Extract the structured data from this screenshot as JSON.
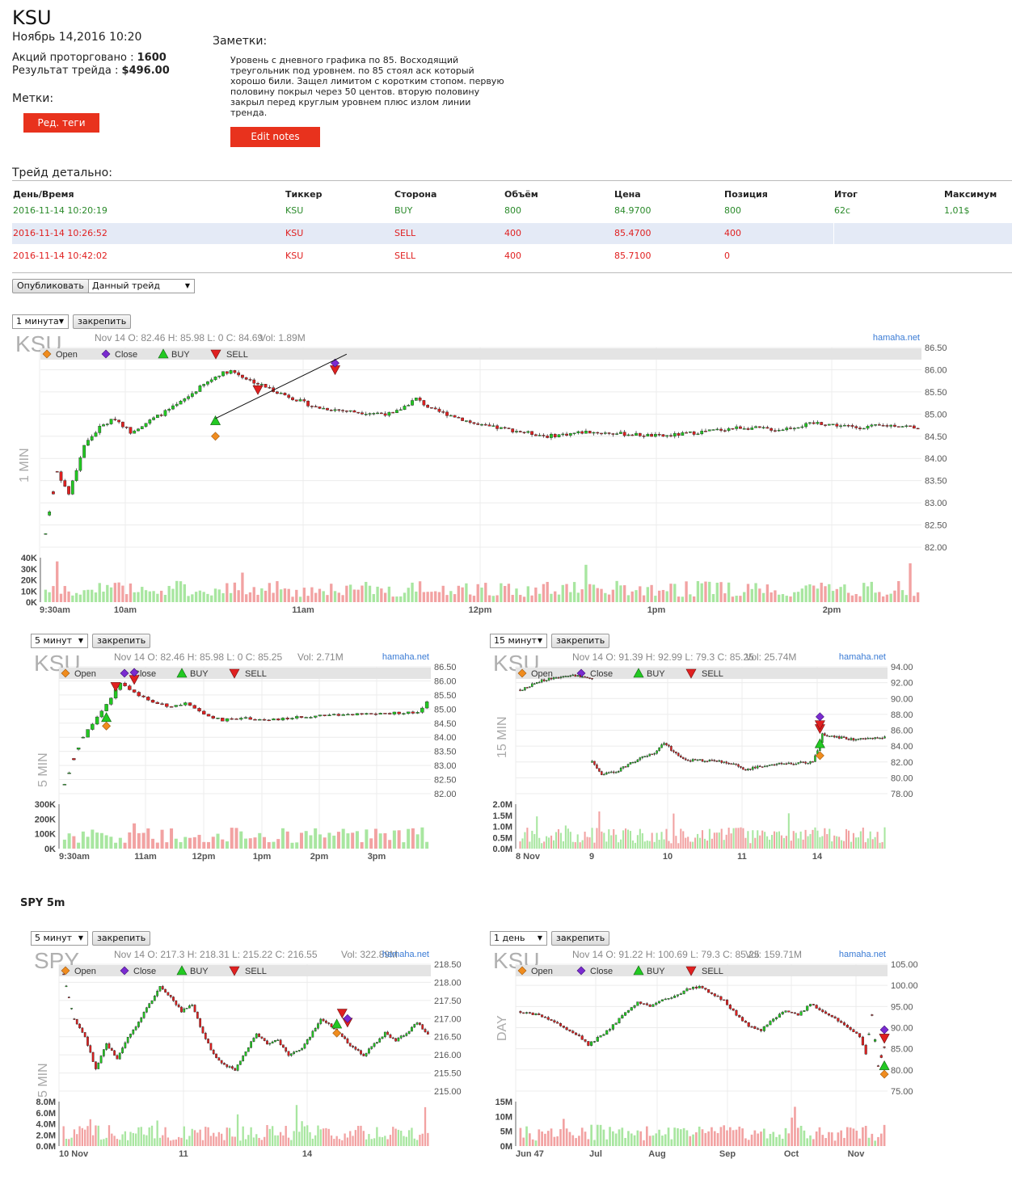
{
  "header": {
    "ticker": "KSU",
    "date": "Ноябрь 14,2016 10:20",
    "shares_label": "Акций проторговано :",
    "shares_value": "1600",
    "result_label": "Результат трейда :",
    "result_value": "$496.00",
    "tags_label": "Метки:",
    "edit_tags_button": "Ред. теги",
    "notes_label": "Заметки:",
    "notes_text": "Уровень с дневного графика по 85. Восходящий треугольник под уровнем. по 85 стоял аск который хорошо били. Защел лимитом с коротким стопом. первую половину покрыл через 50 центов. вторую половину закрыл перед круглым уровнем плюс излом линии тренда.",
    "edit_notes_button": "Edit notes"
  },
  "trade_detail": {
    "title": "Трейд детально:",
    "columns": [
      "День/Время",
      "Тиккер",
      "Сторона",
      "Объём",
      "Цена",
      "Позиция",
      "Итог",
      "Максимум"
    ],
    "rows": [
      {
        "datetime": "2016-11-14 10:20:19",
        "ticker": "KSU",
        "side": "BUY",
        "volume": "800",
        "price": "84.9700",
        "position": "800",
        "total": "62c",
        "max": "1,01$"
      },
      {
        "datetime": "2016-11-14 10:26:52",
        "ticker": "KSU",
        "side": "SELL",
        "volume": "400",
        "price": "85.4700",
        "position": "400",
        "total": "",
        "max": ""
      },
      {
        "datetime": "2016-11-14 10:42:02",
        "ticker": "KSU",
        "side": "SELL",
        "volume": "400",
        "price": "85.7100",
        "position": "0",
        "total": "",
        "max": ""
      }
    ],
    "publish_button": "Опубликовать",
    "publish_select": "Данный трейд"
  },
  "controls": {
    "pin_button": "закрепить",
    "tf_1min": "1 минута",
    "tf_5min": "5 минут",
    "tf_15min": "15 минут",
    "tf_1day": "1 день"
  },
  "legend": {
    "open": "Open",
    "close": "Close",
    "buy": "BUY",
    "sell": "SELL"
  },
  "colors": {
    "up": "#22c922",
    "down": "#e02020",
    "open_marker": "#f08c1e",
    "close_marker": "#7a2bd0",
    "brand_button": "#e8321d",
    "vol_up": "#a8e6a0",
    "vol_down": "#f2a2a2"
  },
  "spy_section_title": "SPY 5m",
  "chart_data": [
    {
      "type": "candlestick",
      "symbol": "KSU",
      "watermark": "KSU",
      "side_label": "1 MIN",
      "info_line": "Nov 14 O: 82.46 H: 85.98 L: 0 C: 84.69",
      "vol_line": "Vol: 1.89M",
      "source": "hamaha.net",
      "y_ticks": [
        "86.50",
        "86.00",
        "85.50",
        "85.00",
        "84.50",
        "84.00",
        "83.50",
        "83.00",
        "82.50",
        "82.00"
      ],
      "ylim": [
        82.0,
        86.5
      ],
      "vol_ticks": [
        "40K",
        "30K",
        "20K",
        "10K",
        "0K"
      ],
      "x_ticks": [
        "9:30am",
        "10am",
        "11am",
        "12pm",
        "1pm",
        "2pm"
      ],
      "keypoints": [
        [
          0,
          82.3
        ],
        [
          3,
          83.7
        ],
        [
          6,
          83.2
        ],
        [
          10,
          84.3
        ],
        [
          14,
          84.7
        ],
        [
          18,
          84.9
        ],
        [
          22,
          84.6
        ],
        [
          28,
          84.9
        ],
        [
          34,
          85.2
        ],
        [
          40,
          85.6
        ],
        [
          45,
          85.9
        ],
        [
          48,
          85.98
        ],
        [
          52,
          85.8
        ],
        [
          60,
          85.5
        ],
        [
          70,
          85.15
        ],
        [
          80,
          85.05
        ],
        [
          90,
          85.0
        ],
        [
          96,
          85.35
        ],
        [
          100,
          85.1
        ],
        [
          106,
          84.95
        ],
        [
          112,
          84.75
        ],
        [
          120,
          84.65
        ],
        [
          130,
          84.5
        ],
        [
          140,
          84.6
        ],
        [
          150,
          84.55
        ],
        [
          160,
          84.5
        ],
        [
          170,
          84.6
        ],
        [
          180,
          84.7
        ],
        [
          190,
          84.65
        ],
        [
          200,
          84.8
        ],
        [
          210,
          84.7
        ],
        [
          220,
          84.75
        ],
        [
          226,
          84.7
        ]
      ],
      "bars": 227,
      "markers": {
        "open": [
          44,
          84.5
        ],
        "buy": [
          44,
          84.85
        ],
        "sell1": [
          55,
          85.55
        ],
        "sell2": [
          75,
          86.0
        ],
        "close": [
          75,
          86.15
        ]
      }
    },
    {
      "type": "candlestick",
      "symbol": "KSU",
      "watermark": "KSU",
      "side_label": "5 MIN",
      "info_line": "Nov 14 O: 82.46 H: 85.98 L: 0 C: 85.25",
      "vol_line": "Vol: 2.71M",
      "source": "hamaha.net",
      "y_ticks": [
        "86.50",
        "86.00",
        "85.50",
        "85.00",
        "84.50",
        "84.00",
        "83.50",
        "83.00",
        "82.50",
        "82.00"
      ],
      "ylim": [
        82.0,
        86.5
      ],
      "vol_ticks": [
        "300K",
        "200K",
        "100K",
        "0K"
      ],
      "x_ticks": [
        "9:30am",
        "11am",
        "12pm",
        "1pm",
        "2pm",
        "3pm"
      ],
      "keypoints": [
        [
          0,
          82.3
        ],
        [
          2,
          83.2
        ],
        [
          4,
          84.0
        ],
        [
          6,
          84.5
        ],
        [
          8,
          84.9
        ],
        [
          10,
          85.4
        ],
        [
          12,
          85.95
        ],
        [
          14,
          85.7
        ],
        [
          18,
          85.3
        ],
        [
          22,
          85.1
        ],
        [
          26,
          85.2
        ],
        [
          30,
          84.8
        ],
        [
          34,
          84.6
        ],
        [
          38,
          84.7
        ],
        [
          44,
          84.6
        ],
        [
          50,
          84.7
        ],
        [
          56,
          84.8
        ],
        [
          62,
          84.8
        ],
        [
          70,
          84.85
        ],
        [
          76,
          84.9
        ],
        [
          78,
          85.25
        ]
      ],
      "bars": 79,
      "markers": {
        "open": [
          9,
          84.4
        ],
        "buy": [
          9,
          84.7
        ],
        "sell1": [
          11,
          85.8
        ],
        "sell2": [
          15,
          86.05
        ],
        "close": [
          15,
          86.3
        ]
      }
    },
    {
      "type": "candlestick",
      "symbol": "KSU",
      "watermark": "KSU",
      "side_label": "15 MIN",
      "info_line": "Nov 14 O: 91.39 H: 92.99 L: 79.3 C: 85.25",
      "vol_line": "Vol: 25.74M",
      "source": "hamaha.net",
      "y_ticks": [
        "94.00",
        "92.00",
        "90.00",
        "88.00",
        "86.00",
        "84.00",
        "82.00",
        "80.00",
        "78.00"
      ],
      "ylim": [
        78.0,
        94.0
      ],
      "vol_ticks": [
        "2.0M",
        "1.5M",
        "1.0M",
        "0.5M",
        "0.0M"
      ],
      "x_ticks": [
        "8 Nov",
        "9",
        "10",
        "11",
        "14"
      ],
      "segments": [
        {
          "start": 0,
          "points": [
            [
              0,
              91.0
            ],
            [
              8,
              92.2
            ],
            [
              16,
              92.7
            ],
            [
              24,
              92.9
            ],
            [
              30,
              92.6
            ]
          ]
        },
        {
          "start": 30,
          "points": [
            [
              30,
              82.0
            ],
            [
              34,
              80.5
            ],
            [
              40,
              80.8
            ],
            [
              46,
              81.8
            ],
            [
              52,
              82.8
            ],
            [
              56,
              83.0
            ],
            [
              60,
              84.5
            ],
            [
              64,
              83.2
            ],
            [
              70,
              82.2
            ],
            [
              80,
              82.2
            ],
            [
              88,
              81.8
            ],
            [
              94,
              81.0
            ],
            [
              100,
              81.5
            ],
            [
              110,
              81.8
            ],
            [
              122,
              82.0
            ],
            [
              124,
              83.5
            ],
            [
              126,
              85.5
            ],
            [
              130,
              85.2
            ],
            [
              140,
              84.8
            ],
            [
              150,
              85.0
            ],
            [
              152,
              85.25
            ]
          ]
        }
      ],
      "bars": 153,
      "markers": {
        "open": [
          125,
          82.8
        ],
        "buy": [
          125,
          84.3
        ],
        "sell1": [
          125,
          86.2
        ],
        "sell2": [
          125,
          86.7
        ],
        "close": [
          125,
          87.7
        ]
      }
    },
    {
      "type": "candlestick",
      "symbol": "SPY",
      "watermark": "SPY",
      "side_label": "5 MIN",
      "info_line": "Nov 14 O: 217.3 H: 218.31 L: 215.22 C: 216.55",
      "vol_line": "Vol: 322.89M",
      "source": "hamaha.net",
      "y_ticks": [
        "218.50",
        "218.00",
        "217.50",
        "217.00",
        "216.50",
        "216.00",
        "215.50",
        "215.00"
      ],
      "ylim": [
        215.0,
        218.5
      ],
      "vol_ticks": [
        "8.0M",
        "6.0M",
        "4.0M",
        "2.0M",
        "0.0M"
      ],
      "x_ticks": [
        "10 Nov",
        "11",
        "14"
      ],
      "keypoints": [
        [
          0,
          218.2
        ],
        [
          4,
          217.0
        ],
        [
          8,
          216.5
        ],
        [
          12,
          215.6
        ],
        [
          16,
          216.3
        ],
        [
          20,
          215.9
        ],
        [
          24,
          216.5
        ],
        [
          28,
          216.9
        ],
        [
          32,
          217.4
        ],
        [
          36,
          217.9
        ],
        [
          40,
          217.6
        ],
        [
          44,
          217.2
        ],
        [
          48,
          217.4
        ],
        [
          52,
          216.6
        ],
        [
          56,
          216.0
        ],
        [
          60,
          215.7
        ],
        [
          64,
          215.6
        ],
        [
          68,
          216.1
        ],
        [
          72,
          216.6
        ],
        [
          76,
          216.3
        ],
        [
          80,
          216.4
        ],
        [
          84,
          216.0
        ],
        [
          88,
          216.1
        ],
        [
          92,
          216.5
        ],
        [
          96,
          217.0
        ],
        [
          100,
          216.8
        ],
        [
          104,
          216.5
        ],
        [
          108,
          216.2
        ],
        [
          112,
          216.0
        ],
        [
          116,
          216.3
        ],
        [
          120,
          216.6
        ],
        [
          124,
          216.4
        ],
        [
          128,
          216.6
        ],
        [
          132,
          216.9
        ],
        [
          136,
          216.55
        ]
      ],
      "bars": 137,
      "markers": {
        "open": [
          102,
          216.6
        ],
        "buy": [
          102,
          216.85
        ],
        "sell1": [
          106,
          216.9
        ],
        "sell2": [
          104,
          217.15
        ],
        "close": [
          106,
          217.0
        ]
      }
    },
    {
      "type": "candlestick",
      "symbol": "KSU",
      "watermark": "KSU",
      "side_label": "DAY",
      "info_line": "Nov 14 O: 91.22 H: 100.69 L: 79.3 C: 85.25",
      "vol_line": "Vol: 159.71M",
      "source": "hamaha.net",
      "y_ticks": [
        "105.00",
        "100.00",
        "95.00",
        "90.00",
        "85.00",
        "80.00",
        "75.00"
      ],
      "ylim": [
        75.0,
        105.0
      ],
      "vol_ticks": [
        "15M",
        "10M",
        "5M",
        "0M"
      ],
      "x_ticks": [
        "Jun 47",
        "Jul",
        "Aug",
        "Sep",
        "Oct",
        "Nov"
      ],
      "keypoints": [
        [
          0,
          93.5
        ],
        [
          6,
          93.0
        ],
        [
          12,
          91.0
        ],
        [
          18,
          88.5
        ],
        [
          22,
          86.0
        ],
        [
          26,
          88.0
        ],
        [
          30,
          90.5
        ],
        [
          34,
          93.5
        ],
        [
          38,
          96.0
        ],
        [
          42,
          95.0
        ],
        [
          46,
          96.5
        ],
        [
          50,
          97.5
        ],
        [
          54,
          99.0
        ],
        [
          58,
          99.8
        ],
        [
          62,
          98.0
        ],
        [
          66,
          96.5
        ],
        [
          70,
          93.0
        ],
        [
          74,
          90.5
        ],
        [
          78,
          89.5
        ],
        [
          82,
          92.0
        ],
        [
          86,
          94.0
        ],
        [
          90,
          93.0
        ],
        [
          94,
          95.5
        ],
        [
          98,
          94.0
        ],
        [
          102,
          92.0
        ],
        [
          106,
          90.0
        ],
        [
          110,
          88.0
        ],
        [
          112,
          84.0
        ],
        [
          114,
          93.0
        ],
        [
          116,
          81.0
        ],
        [
          118,
          85.25
        ]
      ],
      "bars": 119,
      "markers": {
        "open": [
          118,
          79.0
        ],
        "buy": [
          118,
          81.0
        ],
        "sell1": [
          118,
          87.5
        ],
        "sell2": [
          118,
          87.5
        ],
        "close": [
          118,
          89.5
        ]
      }
    }
  ]
}
